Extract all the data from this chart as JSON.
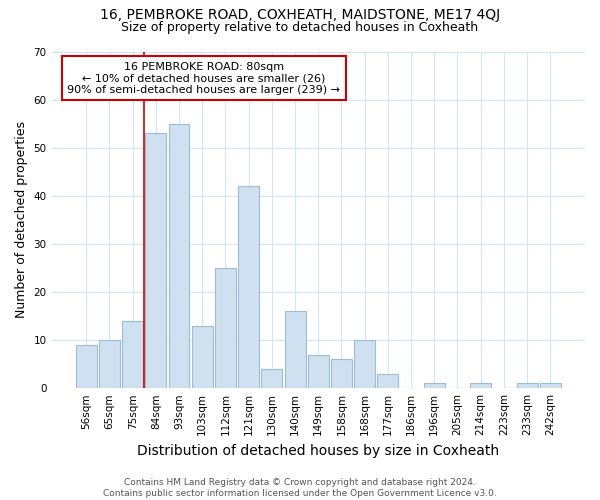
{
  "title": "16, PEMBROKE ROAD, COXHEATH, MAIDSTONE, ME17 4QJ",
  "subtitle": "Size of property relative to detached houses in Coxheath",
  "xlabel": "Distribution of detached houses by size in Coxheath",
  "ylabel": "Number of detached properties",
  "categories": [
    "56sqm",
    "65sqm",
    "75sqm",
    "84sqm",
    "93sqm",
    "103sqm",
    "112sqm",
    "121sqm",
    "130sqm",
    "140sqm",
    "149sqm",
    "158sqm",
    "168sqm",
    "177sqm",
    "186sqm",
    "196sqm",
    "205sqm",
    "214sqm",
    "223sqm",
    "233sqm",
    "242sqm"
  ],
  "values": [
    9,
    10,
    14,
    53,
    55,
    13,
    25,
    42,
    4,
    16,
    7,
    6,
    10,
    3,
    0,
    1,
    0,
    1,
    0,
    1,
    1
  ],
  "bar_color": "#cfe0f0",
  "bar_edge_color": "#9bbcd8",
  "vline_color": "#cc0000",
  "vline_x_index": 2.5,
  "annotation_text": "16 PEMBROKE ROAD: 80sqm\n← 10% of detached houses are smaller (26)\n90% of semi-detached houses are larger (239) →",
  "annotation_box_color": "white",
  "annotation_box_edge": "#cc0000",
  "ylim": [
    0,
    70
  ],
  "yticks": [
    0,
    10,
    20,
    30,
    40,
    50,
    60,
    70
  ],
  "footer": "Contains HM Land Registry data © Crown copyright and database right 2024.\nContains public sector information licensed under the Open Government Licence v3.0.",
  "bg_color": "#ffffff",
  "grid_color": "#d0e4f5",
  "title_fontsize": 10,
  "subtitle_fontsize": 9,
  "tick_fontsize": 7.5,
  "xlabel_fontsize": 10,
  "ylabel_fontsize": 9,
  "annotation_fontsize": 8,
  "footer_fontsize": 6.5
}
